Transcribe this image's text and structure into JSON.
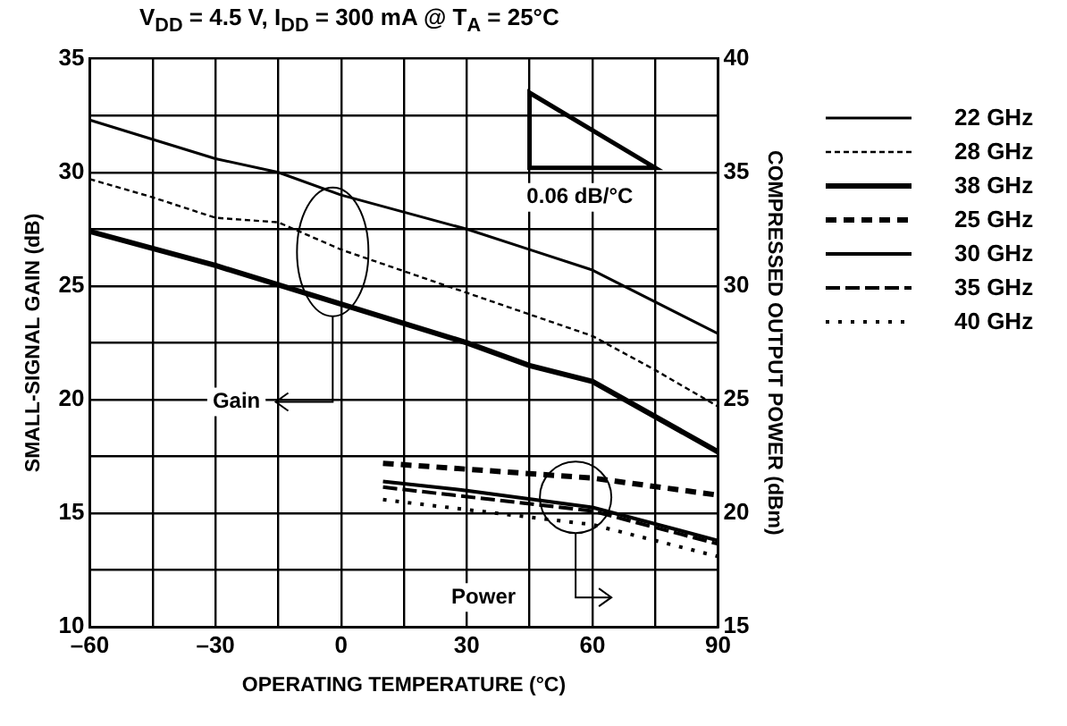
{
  "chart_data": {
    "type": "line",
    "title": "V$_{DD}$ = 4.5 V, I$_{DD}$ = 300 mA @ T$_{A}$ = 25°C",
    "xlabel": "OPERATING TEMPERATURE (°C)",
    "ylabel": "SMALL-SIGNAL GAIN (dB)",
    "y2label": "COMPRESSED OUTPUT POWER (dBm)",
    "xlim": [
      -60,
      90
    ],
    "xticks": [
      {
        "value": -60,
        "label": "–60"
      },
      {
        "value": -45,
        "label": null
      },
      {
        "value": -30,
        "label": "–30"
      },
      {
        "value": -15,
        "label": null
      },
      0,
      {
        "value": 15,
        "label": null
      },
      30,
      {
        "value": 45,
        "label": null
      },
      60,
      {
        "value": 75,
        "label": null
      },
      90
    ],
    "ylim": [
      10,
      35
    ],
    "yticks": [
      10,
      {
        "value": 12.5,
        "label": null
      },
      15,
      {
        "value": 17.5,
        "label": null
      },
      20,
      {
        "value": 22.5,
        "label": null
      },
      25,
      {
        "value": 27.5,
        "label": null
      },
      30,
      {
        "value": 32.5,
        "label": null
      },
      35
    ],
    "y2lim": [
      15,
      40
    ],
    "y2ticks": [
      15,
      20,
      25,
      30,
      35,
      40
    ],
    "grid": true,
    "legend": "right",
    "marker": "none",
    "annotations": [
      "0.06 dB/°C",
      "Gain",
      "Power"
    ],
    "series": [
      {
        "name": "22 GHz",
        "color": "#000000",
        "line_style": "solid",
        "x": [
          -60,
          -30,
          -15,
          0,
          30,
          45,
          60,
          90
        ],
        "values": [
          32.3,
          30.6,
          30.0,
          29.0,
          27.5,
          26.6,
          25.7,
          22.9
        ]
      },
      {
        "name": "28 GHz",
        "color": "#000000",
        "line_style": "dashed",
        "x": [
          -60,
          -45,
          -30,
          -15,
          0,
          30,
          60,
          75,
          90
        ],
        "values": [
          29.7,
          28.9,
          28.0,
          27.8,
          26.6,
          24.7,
          22.8,
          21.3,
          19.7
        ]
      },
      {
        "name": "38 GHz",
        "color": "#000000",
        "line_style": "solid",
        "x": [
          -60,
          -30,
          0,
          30,
          45,
          60,
          90
        ],
        "values": [
          27.4,
          25.9,
          24.2,
          22.5,
          21.5,
          20.8,
          17.7
        ]
      },
      {
        "name": "25 GHz",
        "color": "#000000",
        "line_style": "dashed",
        "axis": "y2",
        "x": [
          10,
          60,
          90
        ],
        "values": [
          22.2,
          21.55,
          20.8
        ]
      },
      {
        "name": "30 GHz",
        "color": "#000000",
        "line_style": "solid",
        "axis": "y2",
        "x": [
          10,
          30,
          60,
          90
        ],
        "values": [
          21.4,
          21.0,
          20.26,
          18.8
        ]
      },
      {
        "name": "35 GHz",
        "color": "#000000",
        "line_style": "dashed",
        "axis": "y2",
        "x": [
          10,
          60,
          90
        ],
        "values": [
          21.15,
          20.1,
          18.65
        ]
      },
      {
        "name": "40 GHz",
        "color": "#000000",
        "line_style": "dotted",
        "axis": "y2",
        "x": [
          10,
          60,
          90
        ],
        "values": [
          20.6,
          19.5,
          18.1
        ]
      }
    ]
  }
}
